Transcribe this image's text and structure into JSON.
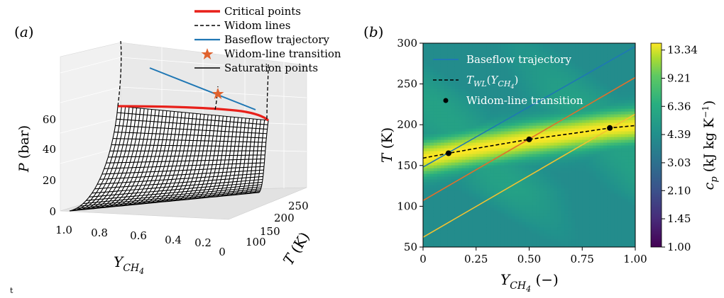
{
  "figure": {
    "stray_mark": "t"
  },
  "chart_data": [
    {
      "panel": "(a)",
      "type": "surface3d",
      "xlabel": "Y_CH4",
      "ylabel": "T (K)",
      "zlabel": "P (bar)",
      "x_ticks": [
        "1.0",
        "0.8",
        "0.6",
        "0.4",
        "0.2",
        "0"
      ],
      "y_ticks": [
        "100",
        "150",
        "200",
        "250"
      ],
      "z_ticks": [
        "0",
        "20",
        "40",
        "60"
      ],
      "xlim": [
        0,
        1
      ],
      "ylim": [
        80,
        260
      ],
      "zlim": [
        0,
        70
      ],
      "legend": {
        "placement": "top",
        "entries": [
          {
            "label": "Critical points",
            "color": "#e8201a",
            "style": "thick-solid"
          },
          {
            "label": "Widom lines",
            "color": "#000000",
            "style": "dashed"
          },
          {
            "label": "Baseflow trajectory",
            "color": "#1f77b4",
            "style": "solid"
          },
          {
            "label": "Widom-line transition",
            "color": "#e0622d",
            "style": "star"
          },
          {
            "label": "Saturation points",
            "color": "#000000",
            "style": "thin-solid"
          }
        ]
      },
      "critical_points": {
        "Y": [
          1.0,
          0.8,
          0.6,
          0.4,
          0.2,
          0.0
        ],
        "P": [
          57,
          57,
          56,
          55,
          53,
          50
        ]
      },
      "saturation_surface": "mesh P_sat(Y, T) rising from 0 to critical pressure"
    },
    {
      "panel": "(b)",
      "type": "heatmap",
      "xlabel": "Y_CH4 (−)",
      "ylabel": "T (K)",
      "xlim": [
        0,
        1
      ],
      "ylim": [
        50,
        300
      ],
      "x_ticks": [
        "0",
        "0.25",
        "0.50",
        "0.75",
        "1.00"
      ],
      "y_ticks": [
        "50",
        "100",
        "150",
        "200",
        "250",
        "300"
      ],
      "colorbar": {
        "label": "c_p (kJ kg K^-1)",
        "ticks": [
          "1.00",
          "1.45",
          "2.10",
          "3.03",
          "4.39",
          "6.36",
          "9.21",
          "13.34"
        ],
        "colormap": "viridis",
        "scale": "log"
      },
      "legend": {
        "placement": "top-left",
        "entries": [
          {
            "label": "Baseflow trajectory",
            "color": "#1f77b4",
            "style": "solid"
          },
          {
            "label": "T_WL(Y_CH4)",
            "color": "#000000",
            "style": "dashed"
          },
          {
            "label": "Widom-line transition",
            "color": "#000000",
            "style": "dot"
          }
        ]
      },
      "series": [
        {
          "color": "#1f77b4",
          "x": [
            0,
            1
          ],
          "y": [
            148,
            296
          ]
        },
        {
          "color": "#e36f2a",
          "x": [
            0,
            1
          ],
          "y": [
            107,
            258
          ]
        },
        {
          "color": "#f2c230",
          "x": [
            0,
            1
          ],
          "y": [
            62,
            213
          ]
        },
        {
          "color": "#000000",
          "style": "dashed",
          "x": [
            0,
            0.12,
            0.25,
            0.5,
            0.75,
            0.88,
            1.0
          ],
          "y": [
            159,
            165,
            171,
            182,
            191,
            196,
            199
          ]
        }
      ],
      "widom_transitions": {
        "x": [
          0.12,
          0.5,
          0.88
        ],
        "y": [
          165,
          182,
          196
        ]
      }
    }
  ]
}
